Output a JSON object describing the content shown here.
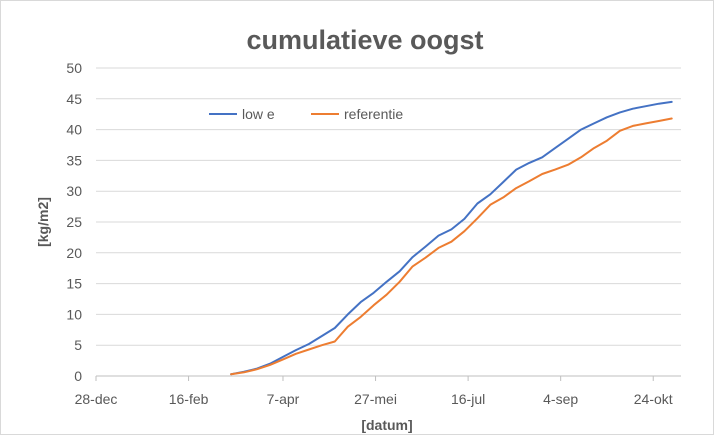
{
  "chart_data": {
    "type": "line",
    "title": "cumulatieve oogst",
    "xlabel": "[datum]",
    "ylabel": "[kg/m2]",
    "ylim": [
      0,
      50
    ],
    "yticks": [
      0,
      5,
      10,
      15,
      20,
      25,
      30,
      35,
      40,
      45,
      50
    ],
    "xlim": [
      "28-dec",
      "8-nov"
    ],
    "xticks": [
      "28-dec",
      "16-feb",
      "7-apr",
      "27-mei",
      "16-jul",
      "4-sep",
      "24-okt"
    ],
    "grid": "horizontal",
    "legend_position": "top-left",
    "colors": {
      "low_e": "#4472c4",
      "referentie": "#ed7d31",
      "grid": "#d9d9d9",
      "text": "#595959"
    },
    "series": [
      {
        "name": "low e",
        "x": [
          "10-mrt",
          "17-mrt",
          "24-mrt",
          "31-mrt",
          "7-apr",
          "14-apr",
          "21-apr",
          "28-apr",
          "5-mei",
          "12-mei",
          "19-mei",
          "26-mei",
          "2-jun",
          "9-jun",
          "16-jun",
          "23-jun",
          "30-jun",
          "7-jul",
          "14-jul",
          "21-jul",
          "28-jul",
          "4-aug",
          "11-aug",
          "18-aug",
          "25-aug",
          "1-sep",
          "8-sep",
          "15-sep",
          "22-sep",
          "29-sep",
          "6-okt",
          "13-okt",
          "20-okt",
          "27-okt",
          "3-nov"
        ],
        "values": [
          0.3,
          0.7,
          1.2,
          2.0,
          3.1,
          4.2,
          5.2,
          6.5,
          7.8,
          10.0,
          12.0,
          13.5,
          15.3,
          17.0,
          19.3,
          21.0,
          22.8,
          23.8,
          25.5,
          28.0,
          29.5,
          31.5,
          33.5,
          34.6,
          35.5,
          37.0,
          38.5,
          40.0,
          41.0,
          42.0,
          42.8,
          43.4,
          43.8,
          44.2,
          44.5
        ]
      },
      {
        "name": "referentie",
        "x": [
          "10-mrt",
          "17-mrt",
          "24-mrt",
          "31-mrt",
          "7-apr",
          "14-apr",
          "21-apr",
          "28-apr",
          "5-mei",
          "12-mei",
          "19-mei",
          "26-mei",
          "2-jun",
          "9-jun",
          "16-jun",
          "23-jun",
          "30-jun",
          "7-jul",
          "14-jul",
          "21-jul",
          "28-jul",
          "4-aug",
          "11-aug",
          "18-aug",
          "25-aug",
          "1-sep",
          "8-sep",
          "15-sep",
          "22-sep",
          "29-sep",
          "6-okt",
          "13-okt",
          "20-okt",
          "27-okt",
          "3-nov"
        ],
        "values": [
          0.3,
          0.6,
          1.1,
          1.8,
          2.7,
          3.6,
          4.3,
          5.0,
          5.6,
          8.0,
          9.6,
          11.5,
          13.2,
          15.3,
          17.8,
          19.2,
          20.8,
          21.8,
          23.5,
          25.6,
          27.8,
          29.0,
          30.5,
          31.6,
          32.8,
          33.5,
          34.3,
          35.5,
          37.0,
          38.2,
          39.8,
          40.6,
          41.0,
          41.4,
          41.8
        ]
      }
    ]
  }
}
